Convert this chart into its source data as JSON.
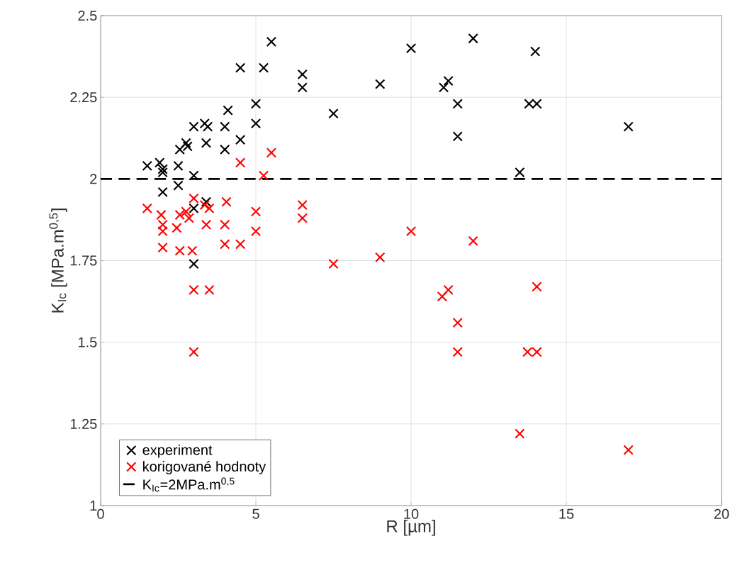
{
  "chart_data": {
    "type": "scatter",
    "xlabel": "R [µm]",
    "ylabel": "K$_{Ic}$ [MPa.m$^{0,5}$]",
    "xlim": [
      0,
      20
    ],
    "ylim": [
      1,
      2.5
    ],
    "xticks": [
      0,
      5,
      10,
      15,
      20
    ],
    "yticks": [
      1,
      1.25,
      1.5,
      1.75,
      2,
      2.25,
      2.5
    ],
    "grid": true,
    "legend": "bottom left",
    "marker": "cross",
    "series": [
      {
        "name": "experiment",
        "color": "#000000",
        "x": [
          1.5,
          1.9,
          2.0,
          2.0,
          2.0,
          2.5,
          2.5,
          2.55,
          2.75,
          2.8,
          3.0,
          3.0,
          3.0,
          3.0,
          3.35,
          3.4,
          3.45,
          3.4,
          4.0,
          4.0,
          4.1,
          4.5,
          4.5,
          5.0,
          5.0,
          5.25,
          5.5,
          6.5,
          6.5,
          7.5,
          9.0,
          10.0,
          11.05,
          11.2,
          11.5,
          11.5,
          12.0,
          13.5,
          13.8,
          14.05,
          14.0,
          17.0
        ],
        "values": [
          2.04,
          2.05,
          2.03,
          2.02,
          1.96,
          2.04,
          1.98,
          2.09,
          2.11,
          2.1,
          2.16,
          2.01,
          1.91,
          1.74,
          2.17,
          2.11,
          2.16,
          1.93,
          2.16,
          2.09,
          2.21,
          2.12,
          2.34,
          2.23,
          2.17,
          2.34,
          2.42,
          2.32,
          2.28,
          2.2,
          2.29,
          2.4,
          2.28,
          2.3,
          2.23,
          2.13,
          2.43,
          2.02,
          2.23,
          2.23,
          2.39,
          2.16
        ]
      },
      {
        "name": "korigované hodnoty",
        "color": "#ff0000",
        "x": [
          1.5,
          1.95,
          2.0,
          2.0,
          2.0,
          2.45,
          2.55,
          2.55,
          2.75,
          2.85,
          2.95,
          3.0,
          3.0,
          3.0,
          3.35,
          3.4,
          3.5,
          3.5,
          4.0,
          4.05,
          4.0,
          4.5,
          4.5,
          5.0,
          5.0,
          5.25,
          5.5,
          6.5,
          6.5,
          7.5,
          9.0,
          10.0,
          11.0,
          11.2,
          11.5,
          11.5,
          12.0,
          13.5,
          13.75,
          14.05,
          14.05,
          17.0
        ],
        "values": [
          1.91,
          1.89,
          1.86,
          1.84,
          1.79,
          1.85,
          1.89,
          1.78,
          1.9,
          1.88,
          1.78,
          1.94,
          1.66,
          1.47,
          1.92,
          1.86,
          1.91,
          1.66,
          1.86,
          1.93,
          1.8,
          1.8,
          2.05,
          1.9,
          1.84,
          2.01,
          2.08,
          1.92,
          1.88,
          1.74,
          1.76,
          1.84,
          1.64,
          1.66,
          1.56,
          1.47,
          1.81,
          1.22,
          1.47,
          1.47,
          1.67,
          1.17
        ]
      }
    ],
    "ref_lines": [
      {
        "axis": "y",
        "value": 2,
        "label": "K$_{Ic}$=2MPa.m$^{0,5}$",
        "color": "#000000",
        "line_style": "dashed"
      }
    ]
  }
}
